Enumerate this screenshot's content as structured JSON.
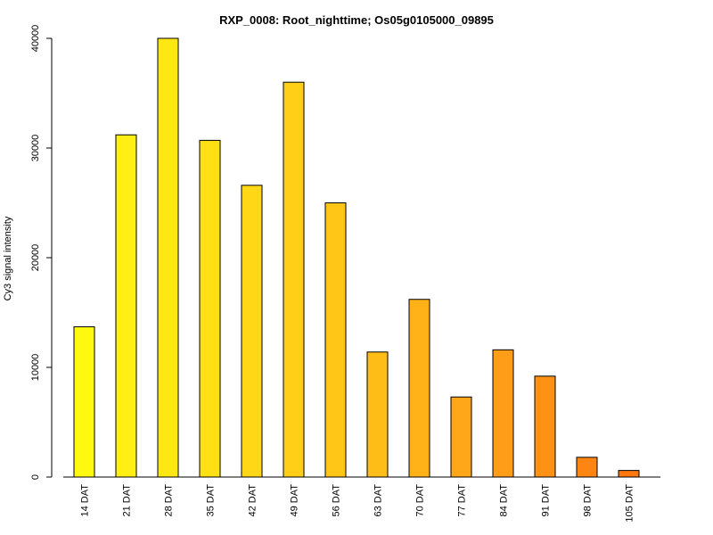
{
  "chart_data": {
    "type": "bar",
    "title": "RXP_0008: Root_nighttime; Os05g0105000_09895",
    "xlabel": "",
    "ylabel": "Cy3 signal intensity",
    "ylim": [
      0,
      40000
    ],
    "yticks": [
      0,
      10000,
      20000,
      30000,
      40000
    ],
    "categories": [
      "14 DAT",
      "21 DAT",
      "28 DAT",
      "35 DAT",
      "42 DAT",
      "49 DAT",
      "56 DAT",
      "63 DAT",
      "70 DAT",
      "77 DAT",
      "84 DAT",
      "91 DAT",
      "98 DAT",
      "105 DAT"
    ],
    "values": [
      13700,
      31200,
      40000,
      30700,
      26600,
      36000,
      25000,
      11400,
      16200,
      7300,
      11600,
      9200,
      1800,
      600
    ],
    "colors": [
      "#FFF90F",
      "#FFEF12",
      "#FFE714",
      "#FFE015",
      "#FFD716",
      "#FFCF17",
      "#FFC618",
      "#FFBD18",
      "#FFB218",
      "#FFA718",
      "#FF9D17",
      "#FF9115",
      "#FF8512",
      "#FF780D"
    ],
    "grid": false,
    "legend": "none"
  }
}
